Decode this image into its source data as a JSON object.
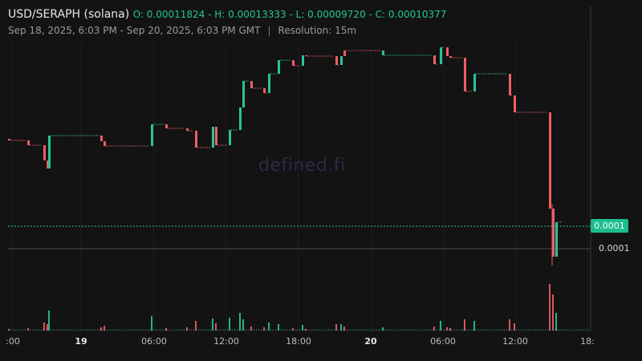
{
  "header": {
    "pair": "USD/SERAPH (solana)",
    "ohlc": "O: 0.00011824 - H: 0.00013333 - L: 0.00009720 - C: 0.00010377",
    "date_range": "Sep 18, 2025, 6:03 PM - Sep 20, 2025, 6:03 PM GMT",
    "separator": "|",
    "resolution": "Resolution: 15m"
  },
  "watermark": "defined.fi",
  "price_axis": {
    "last_price_tag": "0.0001",
    "label": "0.0001"
  },
  "colors": {
    "up": "#27c497",
    "down": "#ef5e62",
    "background": "#131313"
  },
  "chart_data": {
    "type": "candlestick",
    "x_tick_labels": [
      ":00",
      "19",
      "06:00",
      "12:00",
      "18:00",
      "20",
      "06:00",
      "12:00",
      "18:"
    ],
    "bold_tick_labels": [
      "19",
      "20"
    ],
    "price_labels": [
      "0.0001"
    ],
    "last_price": "0.0001",
    "series": [
      {
        "dir": "down",
        "o": 173,
        "c": 175,
        "v": 2
      },
      {
        "dir": "down",
        "o": 175,
        "c": 181,
        "v": 3
      },
      {
        "dir": "down",
        "o": 181,
        "c": 200,
        "v": 10
      },
      {
        "dir": "down",
        "o": 200,
        "c": 210,
        "v": 8
      },
      {
        "dir": "up",
        "o": 210,
        "c": 169,
        "v": 25
      },
      {
        "dir": "down",
        "o": 169,
        "c": 176,
        "v": 4
      },
      {
        "dir": "down",
        "o": 176,
        "c": 182,
        "v": 6
      },
      {
        "dir": "up",
        "o": 182,
        "c": 155,
        "v": 18
      },
      {
        "dir": "down",
        "o": 155,
        "c": 160,
        "v": 3
      },
      {
        "dir": "down",
        "o": 160,
        "c": 163,
        "v": 4
      },
      {
        "dir": "down",
        "o": 163,
        "c": 184,
        "v": 12
      },
      {
        "dir": "up",
        "o": 184,
        "c": 158,
        "v": 15
      },
      {
        "dir": "down",
        "o": 158,
        "c": 181,
        "v": 9
      },
      {
        "dir": "up",
        "o": 181,
        "c": 162,
        "v": 16
      },
      {
        "dir": "up",
        "o": 162,
        "c": 134,
        "v": 22
      },
      {
        "dir": "up",
        "o": 134,
        "c": 101,
        "v": 14
      },
      {
        "dir": "down",
        "o": 101,
        "c": 110,
        "v": 5
      },
      {
        "dir": "down",
        "o": 110,
        "c": 116,
        "v": 4
      },
      {
        "dir": "up",
        "o": 116,
        "c": 92,
        "v": 10
      },
      {
        "dir": "up",
        "o": 92,
        "c": 75,
        "v": 8
      },
      {
        "dir": "down",
        "o": 75,
        "c": 82,
        "v": 3
      },
      {
        "dir": "up",
        "o": 82,
        "c": 69,
        "v": 7
      },
      {
        "dir": "down",
        "o": 69,
        "c": 70,
        "v": 2
      },
      {
        "dir": "down",
        "o": 70,
        "c": 81,
        "v": 8
      },
      {
        "dir": "up",
        "o": 81,
        "c": 70,
        "v": 8
      },
      {
        "dir": "down",
        "o": 70,
        "c": 63,
        "v": 5
      },
      {
        "dir": "up",
        "o": 63,
        "c": 69,
        "v": 4
      },
      {
        "dir": "down",
        "o": 69,
        "c": 80,
        "v": 5
      },
      {
        "dir": "up",
        "o": 80,
        "c": 59,
        "v": 12
      },
      {
        "dir": "down",
        "o": 59,
        "c": 70,
        "v": 4
      },
      {
        "dir": "down",
        "o": 70,
        "c": 72,
        "v": 3
      },
      {
        "dir": "down",
        "o": 72,
        "c": 114,
        "v": 14
      },
      {
        "dir": "up",
        "o": 114,
        "c": 92,
        "v": 12
      },
      {
        "dir": "down",
        "o": 92,
        "c": 119,
        "v": 14
      },
      {
        "dir": "down",
        "o": 119,
        "c": 140,
        "v": 9
      },
      {
        "dir": "down",
        "o": 140,
        "c": 260,
        "v": 58
      },
      {
        "dir": "down",
        "o": 260,
        "c": 320,
        "v": 45
      },
      {
        "dir": "up",
        "o": 320,
        "c": 277,
        "v": 22
      }
    ]
  }
}
